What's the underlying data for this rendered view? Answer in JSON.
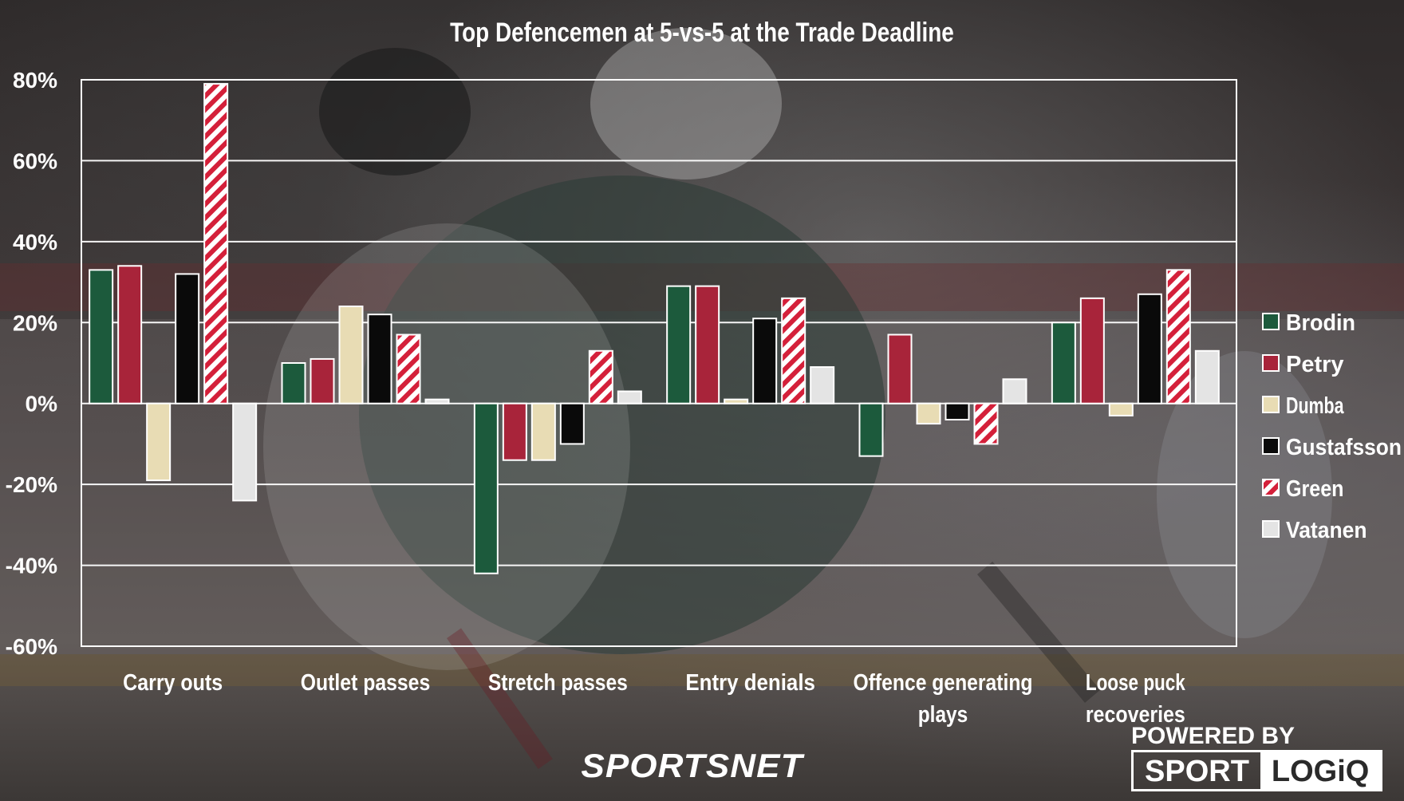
{
  "chart_data": {
    "type": "bar",
    "title": "Top Defencemen at 5-vs-5 at the Trade Deadline",
    "categories": [
      "Carry outs",
      "Outlet passes",
      "Stretch passes",
      "Entry denials",
      "Offence generating plays",
      "Loose puck recoveries"
    ],
    "category_lines": [
      [
        "Carry outs"
      ],
      [
        "Outlet passes"
      ],
      [
        "Stretch passes"
      ],
      [
        "Entry denials"
      ],
      [
        "Offence generating",
        "plays"
      ],
      [
        "Loose puck",
        "recoveries"
      ]
    ],
    "y_tick_labels": [
      "80%",
      "60%",
      "40%",
      "20%",
      "0%",
      "-20%",
      "-40%",
      "-60%"
    ],
    "ylim": [
      -60,
      80
    ],
    "grid": true,
    "legend_position": "right",
    "series": [
      {
        "name": "Brodin",
        "color": "#1c5a3c",
        "pattern": "solid",
        "values": [
          33,
          10,
          -42,
          29,
          -13,
          20
        ]
      },
      {
        "name": "Petry",
        "color": "#a8243a",
        "pattern": "solid",
        "values": [
          34,
          11,
          -14,
          29,
          17,
          26
        ]
      },
      {
        "name": "Dumba",
        "color": "#e8dcb4",
        "pattern": "solid",
        "values": [
          -19,
          24,
          -14,
          1,
          -5,
          -3
        ]
      },
      {
        "name": "Gustafsson",
        "color": "#0a0a0a",
        "pattern": "solid",
        "values": [
          32,
          22,
          -10,
          21,
          -4,
          27
        ]
      },
      {
        "name": "Green",
        "color": "#d4203a",
        "pattern": "stripes",
        "values": [
          79,
          17,
          13,
          26,
          -10,
          33
        ]
      },
      {
        "name": "Vatanen",
        "color": "#e4e4e4",
        "pattern": "solid",
        "values": [
          -24,
          1,
          3,
          9,
          6,
          13
        ]
      }
    ]
  },
  "logos": {
    "sportsnet": "SPORTSNET",
    "powered_by": "POWERED BY",
    "sport": "SPORT",
    "logiq": "LOGiQ"
  }
}
